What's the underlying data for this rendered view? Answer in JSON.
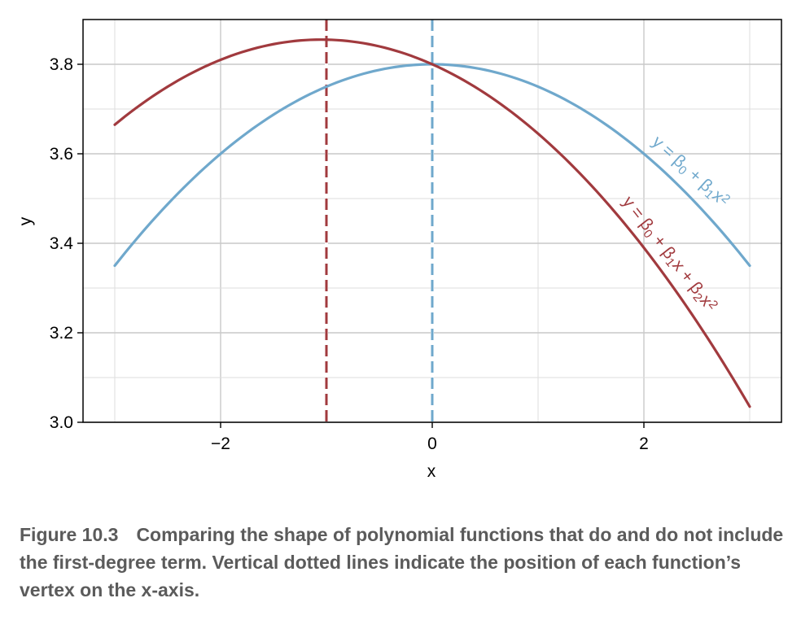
{
  "chart_data": {
    "type": "line",
    "xlabel": "x",
    "ylabel": "y",
    "xlim": [
      -3.3,
      3.3
    ],
    "ylim": [
      3.0,
      3.9
    ],
    "xticks": [
      -2,
      0,
      2
    ],
    "xtick_labels": [
      "−2",
      "0",
      "2"
    ],
    "yticks": [
      3.0,
      3.2,
      3.4,
      3.6,
      3.8
    ],
    "ytick_labels": [
      "3.0",
      "3.2",
      "3.4",
      "3.6",
      "3.8"
    ],
    "grid": true,
    "x_range": [
      -3,
      3
    ],
    "series": [
      {
        "name": "y = β0 + β1x²",
        "color": "#6fa8cc",
        "x": [
          -3.0,
          -2.5,
          -2.0,
          -1.5,
          -1.0,
          -0.5,
          0.0,
          0.5,
          1.0,
          1.5,
          2.0,
          2.5,
          3.0
        ],
        "y": [
          3.35,
          3.4875,
          3.6,
          3.6875,
          3.75,
          3.7875,
          3.8,
          3.7875,
          3.75,
          3.6875,
          3.6,
          3.4875,
          3.35
        ],
        "vertex_x": 0,
        "label": {
          "parts": [
            {
              "t": "y = β"
            },
            {
              "t": "0",
              "sub": true
            },
            {
              "t": " + β"
            },
            {
              "t": "1",
              "sub": true
            },
            {
              "t": "x"
            },
            {
              "t": "2",
              "sup": true
            }
          ]
        }
      },
      {
        "name": "y = β0 + β1x + β2x²",
        "color": "#a13a3e",
        "x": [
          -3.0,
          -2.5,
          -2.0,
          -1.5,
          -1.0,
          -0.5,
          0.0,
          0.5,
          1.0,
          1.5,
          2.0,
          2.5,
          3.0
        ],
        "y": [
          3.665,
          3.75,
          3.81,
          3.845,
          3.855,
          3.84,
          3.8,
          3.735,
          3.645,
          3.53,
          3.39,
          3.225,
          3.035
        ],
        "vertex_x": -1,
        "label": {
          "parts": [
            {
              "t": "y = β"
            },
            {
              "t": "0",
              "sub": true
            },
            {
              "t": " + β"
            },
            {
              "t": "1",
              "sub": true
            },
            {
              "t": "x + β"
            },
            {
              "t": "2",
              "sub": true
            },
            {
              "t": "x"
            },
            {
              "t": "2",
              "sup": true
            }
          ]
        }
      }
    ]
  },
  "caption": {
    "figure_number": "Figure 10.3",
    "text": "Comparing the shape of polynomial functions that do and do not include the first-degree term. Vertical dotted lines indicate the position of each function’s vertex on the x-axis."
  }
}
